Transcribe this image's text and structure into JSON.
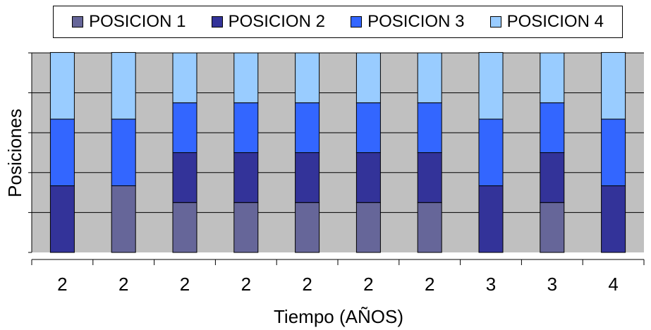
{
  "chart_data": {
    "type": "bar",
    "stacked": true,
    "title": "",
    "xlabel": "Tiempo (AÑOS)",
    "ylabel": "Posiciones",
    "categories": [
      "2",
      "2",
      "2",
      "2",
      "2",
      "2",
      "2",
      "3",
      "3",
      "4"
    ],
    "ylim": [
      0,
      5
    ],
    "y_tick_labels_shown": false,
    "grid": true,
    "legend": "top",
    "plot_background": "#C0C0C0",
    "series": [
      {
        "name": "POSICION 1",
        "color": "#666699",
        "values": [
          0,
          1.67,
          1.25,
          1.25,
          1.25,
          1.25,
          1.25,
          0,
          1.25,
          0
        ]
      },
      {
        "name": "POSICION 2",
        "color": "#333399",
        "values": [
          1.67,
          0,
          1.25,
          1.25,
          1.25,
          1.25,
          1.25,
          1.67,
          1.25,
          1.67
        ]
      },
      {
        "name": "POSICION 3",
        "color": "#3366FF",
        "values": [
          1.67,
          1.67,
          1.25,
          1.25,
          1.25,
          1.25,
          1.25,
          1.67,
          1.25,
          1.67
        ]
      },
      {
        "name": "POSICION 4",
        "color": "#99CCFF",
        "values": [
          1.67,
          1.67,
          1.25,
          1.25,
          1.25,
          1.25,
          1.25,
          1.67,
          1.25,
          1.67
        ]
      }
    ]
  }
}
